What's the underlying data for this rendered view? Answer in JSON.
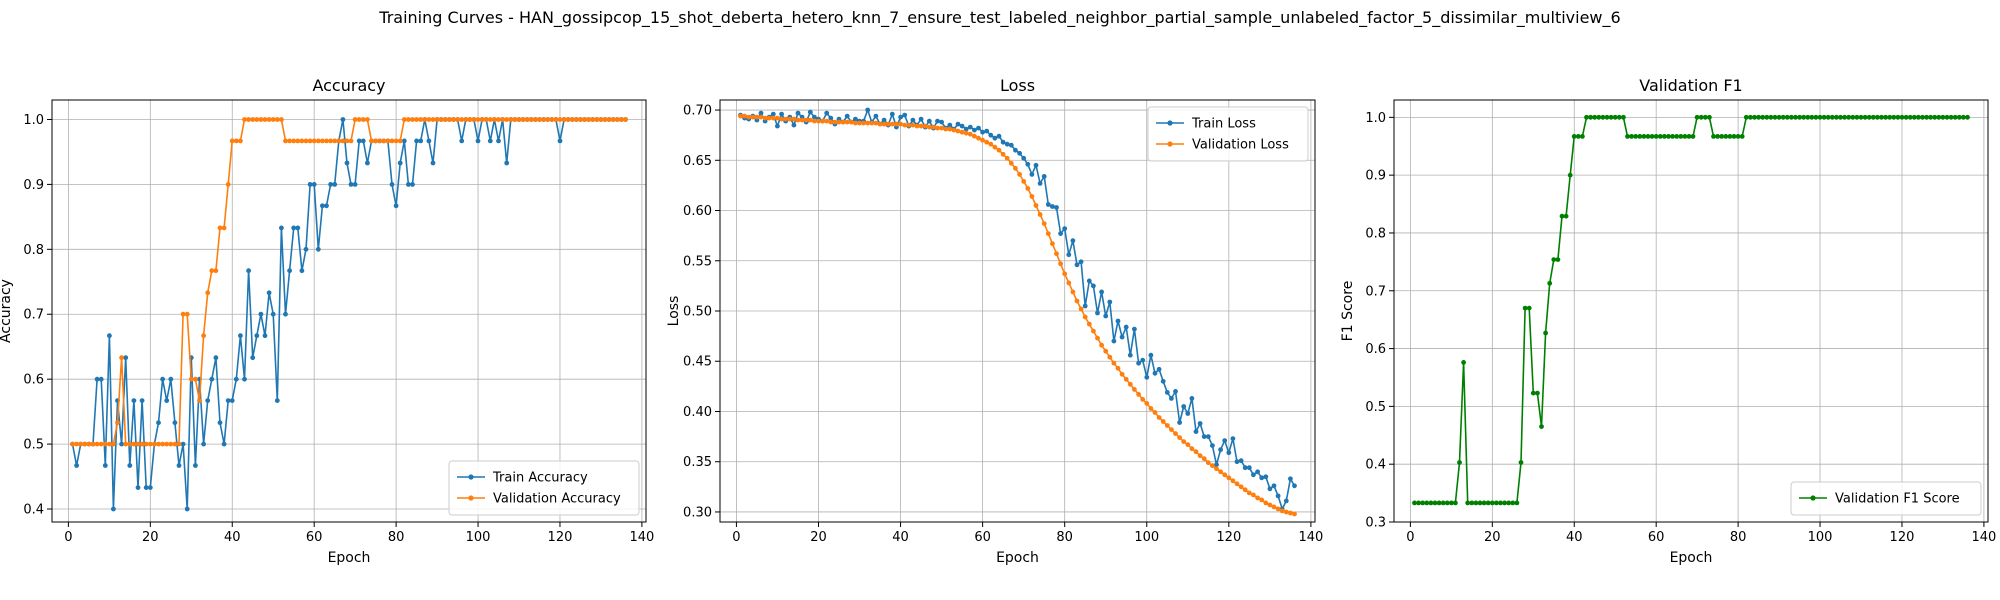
{
  "figure": {
    "suptitle": "Training Curves - HAN_gossipcop_15_shot_deberta_hetero_knn_7_ensure_test_labeled_neighbor_partial_sample_unlabeled_factor_5_dissimilar_multiview_6"
  },
  "chart_data": [
    {
      "type": "line",
      "title": "Accuracy",
      "xlabel": "Epoch",
      "ylabel": "Accuracy",
      "xlim": [
        -4,
        141
      ],
      "ylim": [
        0.38,
        1.03
      ],
      "xticks": [
        0,
        20,
        40,
        60,
        80,
        100,
        120,
        140
      ],
      "yticks": [
        0.4,
        0.5,
        0.6,
        0.7,
        0.8,
        0.9,
        1.0
      ],
      "grid": true,
      "legend": "lower-right",
      "x": {
        "start": 1,
        "end": 136
      },
      "series": [
        {
          "name": "Train Accuracy",
          "color": "#1f77b4",
          "values": [
            0.5,
            0.467,
            0.5,
            0.5,
            0.5,
            0.5,
            0.6,
            0.6,
            0.467,
            0.667,
            0.4,
            0.567,
            0.5,
            0.633,
            0.467,
            0.567,
            0.433,
            0.567,
            0.433,
            0.433,
            0.5,
            0.533,
            0.6,
            0.567,
            0.6,
            0.533,
            0.467,
            0.5,
            0.4,
            0.633,
            0.467,
            0.6,
            0.5,
            0.567,
            0.6,
            0.633,
            0.533,
            0.5,
            0.567,
            0.567,
            0.6,
            0.667,
            0.6,
            0.767,
            0.633,
            0.667,
            0.7,
            0.667,
            0.733,
            0.7,
            0.567,
            0.833,
            0.7,
            0.767,
            0.833,
            0.833,
            0.767,
            0.8,
            0.9,
            0.9,
            0.8,
            0.867,
            0.867,
            0.9,
            0.9,
            0.967,
            1.0,
            0.933,
            0.9,
            0.9,
            0.967,
            0.967,
            0.933,
            0.967,
            0.967,
            0.967,
            0.967,
            0.967,
            0.9,
            0.867,
            0.933,
            0.967,
            0.9,
            0.9,
            0.967,
            0.967,
            1.0,
            0.967,
            0.933,
            1.0,
            1.0,
            1.0,
            1.0,
            1.0,
            1.0,
            0.967,
            1.0,
            1.0,
            1.0,
            0.967,
            1.0,
            1.0,
            0.967,
            1.0,
            0.967,
            1.0,
            0.933,
            1.0,
            1.0,
            1.0,
            1.0,
            1.0,
            1.0,
            1.0,
            1.0,
            1.0,
            1.0,
            1.0,
            1.0,
            0.967,
            1.0,
            1.0,
            1.0,
            1.0,
            1.0,
            1.0,
            1.0,
            1.0,
            1.0,
            1.0,
            1.0,
            1.0,
            1.0,
            1.0,
            1.0,
            1.0
          ]
        },
        {
          "name": "Validation Accuracy",
          "color": "#ff7f0e",
          "values": [
            0.5,
            0.5,
            0.5,
            0.5,
            0.5,
            0.5,
            0.5,
            0.5,
            0.5,
            0.5,
            0.5,
            0.533,
            0.633,
            0.5,
            0.5,
            0.5,
            0.5,
            0.5,
            0.5,
            0.5,
            0.5,
            0.5,
            0.5,
            0.5,
            0.5,
            0.5,
            0.5,
            0.7,
            0.7,
            0.6,
            0.6,
            0.567,
            0.667,
            0.733,
            0.767,
            0.767,
            0.833,
            0.833,
            0.9,
            0.967,
            0.967,
            0.967,
            1.0,
            1.0,
            1.0,
            1.0,
            1.0,
            1.0,
            1.0,
            1.0,
            1.0,
            1.0,
            0.967,
            0.967,
            0.967,
            0.967,
            0.967,
            0.967,
            0.967,
            0.967,
            0.967,
            0.967,
            0.967,
            0.967,
            0.967,
            0.967,
            0.967,
            0.967,
            0.967,
            1.0,
            1.0,
            1.0,
            1.0,
            0.967,
            0.967,
            0.967,
            0.967,
            0.967,
            0.967,
            0.967,
            0.967,
            1.0,
            1.0,
            1.0,
            1.0,
            1.0,
            1.0,
            1.0,
            1.0,
            1.0,
            1.0,
            1.0,
            1.0,
            1.0,
            1.0,
            1.0,
            1.0,
            1.0,
            1.0,
            1.0,
            1.0,
            1.0,
            1.0,
            1.0,
            1.0,
            1.0,
            1.0,
            1.0,
            1.0,
            1.0,
            1.0,
            1.0,
            1.0,
            1.0,
            1.0,
            1.0,
            1.0,
            1.0,
            1.0,
            1.0,
            1.0,
            1.0,
            1.0,
            1.0,
            1.0,
            1.0,
            1.0,
            1.0,
            1.0,
            1.0,
            1.0,
            1.0,
            1.0,
            1.0,
            1.0,
            1.0
          ]
        }
      ]
    },
    {
      "type": "line",
      "title": "Loss",
      "xlabel": "Epoch",
      "ylabel": "Loss",
      "xlim": [
        -4,
        141
      ],
      "ylim": [
        0.29,
        0.71
      ],
      "xticks": [
        0,
        20,
        40,
        60,
        80,
        100,
        120,
        140
      ],
      "yticks": [
        0.3,
        0.35,
        0.4,
        0.45,
        0.5,
        0.55,
        0.6,
        0.65,
        0.7
      ],
      "ytick_labels": [
        "0.30",
        "0.35",
        "0.40",
        "0.45",
        "0.50",
        "0.55",
        "0.60",
        "0.65",
        "0.70"
      ],
      "grid": true,
      "legend": "upper-right",
      "x": {
        "start": 1,
        "end": 136
      },
      "series": [
        {
          "name": "Train Loss",
          "color": "#1f77b4",
          "values": [
            0.695,
            0.692,
            0.691,
            0.694,
            0.69,
            0.697,
            0.689,
            0.693,
            0.696,
            0.684,
            0.696,
            0.689,
            0.693,
            0.685,
            0.697,
            0.693,
            0.688,
            0.698,
            0.693,
            0.691,
            0.689,
            0.697,
            0.692,
            0.686,
            0.691,
            0.688,
            0.694,
            0.688,
            0.691,
            0.689,
            0.689,
            0.7,
            0.688,
            0.694,
            0.686,
            0.69,
            0.685,
            0.696,
            0.683,
            0.693,
            0.695,
            0.684,
            0.69,
            0.685,
            0.691,
            0.683,
            0.689,
            0.682,
            0.689,
            0.688,
            0.682,
            0.685,
            0.681,
            0.686,
            0.684,
            0.681,
            0.683,
            0.68,
            0.682,
            0.678,
            0.679,
            0.675,
            0.672,
            0.674,
            0.668,
            0.666,
            0.665,
            0.66,
            0.657,
            0.652,
            0.646,
            0.636,
            0.645,
            0.627,
            0.634,
            0.606,
            0.604,
            0.603,
            0.577,
            0.582,
            0.556,
            0.57,
            0.546,
            0.549,
            0.505,
            0.53,
            0.525,
            0.498,
            0.519,
            0.495,
            0.509,
            0.47,
            0.49,
            0.474,
            0.484,
            0.456,
            0.482,
            0.448,
            0.451,
            0.434,
            0.456,
            0.438,
            0.442,
            0.43,
            0.419,
            0.413,
            0.42,
            0.389,
            0.405,
            0.398,
            0.413,
            0.38,
            0.388,
            0.375,
            0.375,
            0.366,
            0.347,
            0.362,
            0.371,
            0.359,
            0.373,
            0.35,
            0.351,
            0.344,
            0.344,
            0.337,
            0.34,
            0.334,
            0.335,
            0.323,
            0.326,
            0.316,
            0.303,
            0.311,
            0.333,
            0.326
          ]
        },
        {
          "name": "Validation Loss",
          "color": "#ff7f0e",
          "values": [
            0.694,
            0.694,
            0.693,
            0.693,
            0.693,
            0.693,
            0.692,
            0.692,
            0.692,
            0.692,
            0.691,
            0.691,
            0.691,
            0.691,
            0.69,
            0.69,
            0.69,
            0.69,
            0.689,
            0.689,
            0.689,
            0.689,
            0.688,
            0.688,
            0.688,
            0.688,
            0.688,
            0.688,
            0.687,
            0.687,
            0.687,
            0.687,
            0.687,
            0.687,
            0.686,
            0.686,
            0.686,
            0.686,
            0.686,
            0.686,
            0.685,
            0.685,
            0.685,
            0.684,
            0.684,
            0.684,
            0.683,
            0.683,
            0.682,
            0.682,
            0.681,
            0.681,
            0.68,
            0.679,
            0.678,
            0.677,
            0.676,
            0.674,
            0.672,
            0.67,
            0.668,
            0.666,
            0.663,
            0.66,
            0.656,
            0.652,
            0.647,
            0.642,
            0.636,
            0.629,
            0.622,
            0.614,
            0.605,
            0.596,
            0.587,
            0.577,
            0.567,
            0.557,
            0.547,
            0.537,
            0.528,
            0.519,
            0.51,
            0.502,
            0.494,
            0.487,
            0.48,
            0.473,
            0.466,
            0.46,
            0.454,
            0.448,
            0.443,
            0.437,
            0.432,
            0.427,
            0.422,
            0.417,
            0.412,
            0.408,
            0.403,
            0.399,
            0.394,
            0.39,
            0.386,
            0.382,
            0.378,
            0.374,
            0.37,
            0.367,
            0.363,
            0.36,
            0.356,
            0.353,
            0.349,
            0.346,
            0.343,
            0.34,
            0.337,
            0.334,
            0.331,
            0.328,
            0.325,
            0.322,
            0.319,
            0.317,
            0.314,
            0.312,
            0.309,
            0.307,
            0.305,
            0.303,
            0.301,
            0.3,
            0.299,
            0.298
          ]
        }
      ]
    },
    {
      "type": "line",
      "title": "Validation F1",
      "xlabel": "Epoch",
      "ylabel": "F1 Score",
      "xlim": [
        -4,
        141
      ],
      "ylim": [
        0.3,
        1.03
      ],
      "xticks": [
        0,
        20,
        40,
        60,
        80,
        100,
        120,
        140
      ],
      "yticks": [
        0.3,
        0.4,
        0.5,
        0.6,
        0.7,
        0.8,
        0.9,
        1.0
      ],
      "grid": true,
      "legend": "lower-right",
      "x": {
        "start": 1,
        "end": 136
      },
      "series": [
        {
          "name": "Validation F1 Score",
          "color": "#008000",
          "values": [
            0.333,
            0.333,
            0.333,
            0.333,
            0.333,
            0.333,
            0.333,
            0.333,
            0.333,
            0.333,
            0.333,
            0.403,
            0.576,
            0.333,
            0.333,
            0.333,
            0.333,
            0.333,
            0.333,
            0.333,
            0.333,
            0.333,
            0.333,
            0.333,
            0.333,
            0.333,
            0.403,
            0.67,
            0.67,
            0.523,
            0.523,
            0.465,
            0.627,
            0.713,
            0.754,
            0.754,
            0.829,
            0.829,
            0.9,
            0.967,
            0.967,
            0.967,
            1.0,
            1.0,
            1.0,
            1.0,
            1.0,
            1.0,
            1.0,
            1.0,
            1.0,
            1.0,
            0.967,
            0.967,
            0.967,
            0.967,
            0.967,
            0.967,
            0.967,
            0.967,
            0.967,
            0.967,
            0.967,
            0.967,
            0.967,
            0.967,
            0.967,
            0.967,
            0.967,
            1.0,
            1.0,
            1.0,
            1.0,
            0.967,
            0.967,
            0.967,
            0.967,
            0.967,
            0.967,
            0.967,
            0.967,
            1.0,
            1.0,
            1.0,
            1.0,
            1.0,
            1.0,
            1.0,
            1.0,
            1.0,
            1.0,
            1.0,
            1.0,
            1.0,
            1.0,
            1.0,
            1.0,
            1.0,
            1.0,
            1.0,
            1.0,
            1.0,
            1.0,
            1.0,
            1.0,
            1.0,
            1.0,
            1.0,
            1.0,
            1.0,
            1.0,
            1.0,
            1.0,
            1.0,
            1.0,
            1.0,
            1.0,
            1.0,
            1.0,
            1.0,
            1.0,
            1.0,
            1.0,
            1.0,
            1.0,
            1.0,
            1.0,
            1.0,
            1.0,
            1.0,
            1.0,
            1.0,
            1.0,
            1.0,
            1.0,
            1.0
          ]
        }
      ]
    }
  ]
}
